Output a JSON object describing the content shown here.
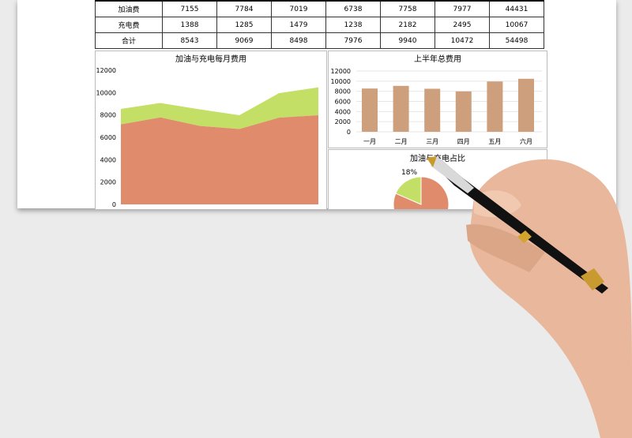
{
  "table": {
    "rows": [
      {
        "label": "加油费",
        "values": [
          "7155",
          "7784",
          "7019",
          "6738",
          "7758",
          "7977",
          "44431"
        ]
      },
      {
        "label": "充电费",
        "values": [
          "1388",
          "1285",
          "1479",
          "1238",
          "2182",
          "2495",
          "10067"
        ]
      },
      {
        "label": "合计",
        "values": [
          "8543",
          "9069",
          "8498",
          "7976",
          "9940",
          "10472",
          "54498"
        ]
      }
    ]
  },
  "chart_data": [
    {
      "type": "area",
      "title": "加油与充电每月费用",
      "stacked": true,
      "ylim": [
        0,
        12000
      ],
      "yticks": [
        "0",
        "2000",
        "4000",
        "6000",
        "8000",
        "10000",
        "12000"
      ],
      "series": [
        {
          "values": [
            7155,
            7784,
            7019,
            6738,
            7758,
            7977
          ],
          "color": "#e08b6c"
        },
        {
          "values": [
            1388,
            1285,
            1479,
            1238,
            2182,
            2495
          ],
          "color": "#c3df66"
        }
      ]
    },
    {
      "type": "bar",
      "title": "上半年总费用",
      "categories": [
        "一月",
        "二月",
        "三月",
        "四月",
        "五月",
        "六月"
      ],
      "values": [
        8543,
        9069,
        8498,
        7976,
        9940,
        10472
      ],
      "ylim": [
        0,
        12000
      ],
      "yticks": [
        "0",
        "2000",
        "4000",
        "6000",
        "8000",
        "10000",
        "12000"
      ],
      "color": "#cd9f7c",
      "grid": true
    },
    {
      "type": "pie",
      "title": "加油与充电占比",
      "slices": [
        {
          "value": 44431,
          "color": "#e08b6c"
        },
        {
          "value": 10067,
          "color": "#c3df66",
          "label": "18%"
        }
      ]
    }
  ]
}
